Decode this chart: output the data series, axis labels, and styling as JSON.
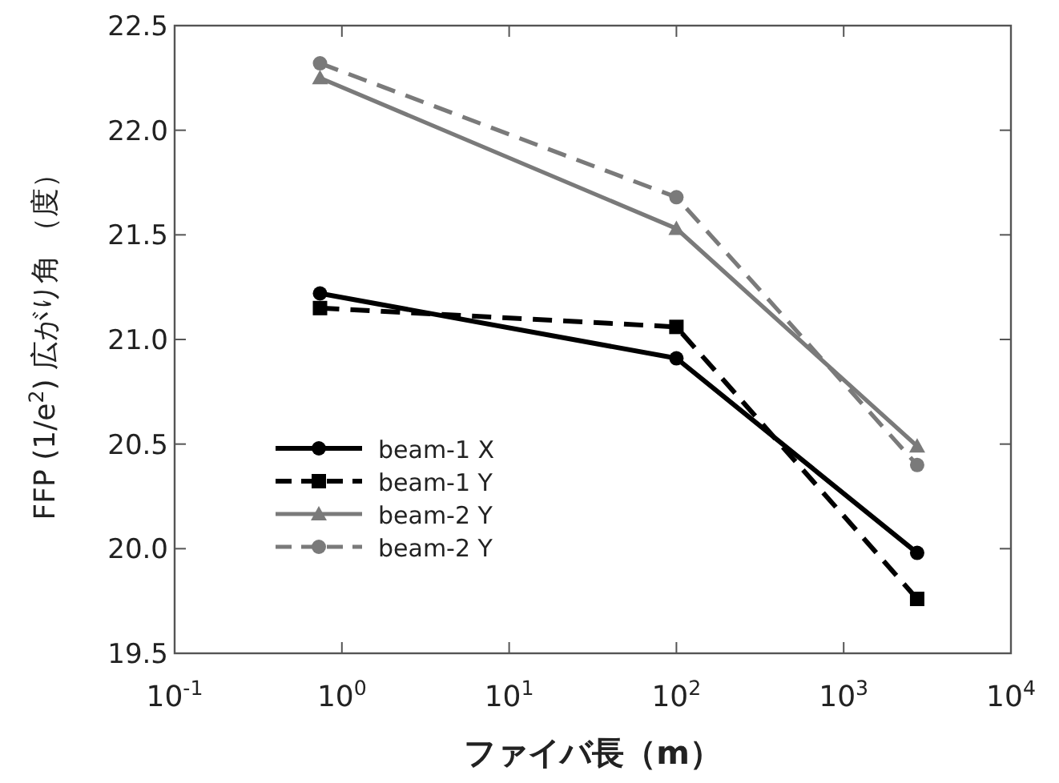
{
  "chart_data": {
    "type": "line",
    "xlabel": "ファイバ長（m）",
    "ylabel": "FFP (1/e$^{2}$) 広がり角 （度）",
    "x": [
      0.74,
      100,
      2750
    ],
    "series": [
      {
        "name": "beam-1 X",
        "color": "#000000",
        "marker": "circle",
        "line_style": "solid",
        "values": [
          21.22,
          20.91,
          19.98
        ]
      },
      {
        "name": "beam-1 Y",
        "color": "#000000",
        "marker": "square",
        "line_style": "dashed",
        "values": [
          21.15,
          21.06,
          19.76
        ]
      },
      {
        "name": "beam-2 Y",
        "color": "#7a7a7a",
        "marker": "triangle",
        "line_style": "solid",
        "values": [
          22.25,
          21.53,
          20.49
        ]
      },
      {
        "name": "beam-2 Y",
        "color": "#7a7a7a",
        "marker": "circle",
        "line_style": "dashed",
        "values": [
          22.32,
          21.68,
          20.4
        ]
      }
    ],
    "log": "x",
    "xlim": [
      0.1,
      10000
    ],
    "xticks": [
      {
        "value": 0.1,
        "label": "10$^{-1}$"
      },
      {
        "value": 1,
        "label": "10$^{0}$"
      },
      {
        "value": 10,
        "label": "10$^{1}$"
      },
      {
        "value": 100,
        "label": "10$^{2}$"
      },
      {
        "value": 1000,
        "label": "10$^{3}$"
      },
      {
        "value": 10000,
        "label": "10$^{4}$"
      }
    ],
    "ylim": [
      19.5,
      22.5
    ],
    "yticks": [
      {
        "value": 19.5,
        "label": "19.5"
      },
      {
        "value": 20.0,
        "label": "20.0"
      },
      {
        "value": 20.5,
        "label": "20.5"
      },
      {
        "value": 21.0,
        "label": "21.0"
      },
      {
        "value": 21.5,
        "label": "21.5"
      },
      {
        "value": 22.0,
        "label": "22.0"
      },
      {
        "value": 22.5,
        "label": "22.5"
      }
    ],
    "grid": false,
    "legend": "bottom left"
  }
}
